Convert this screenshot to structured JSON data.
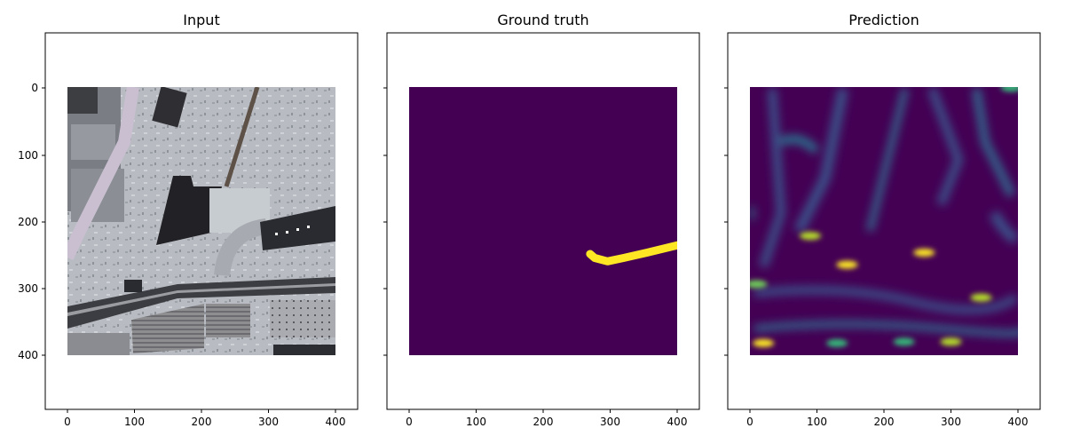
{
  "figure": {
    "panels": [
      {
        "title": "Input",
        "image_kind": "aerial photograph",
        "show_ytick_labels": true
      },
      {
        "title": "Ground truth",
        "image_kind": "binary segmentation mask",
        "show_ytick_labels": false
      },
      {
        "title": "Prediction",
        "image_kind": "predicted probability heatmap",
        "show_ytick_labels": false
      }
    ]
  },
  "chart_data": [
    {
      "type": "heatmap",
      "title": "Input",
      "xlim": [
        -33,
        433
      ],
      "ylim": [
        480,
        -80
      ],
      "image_extent": [
        0,
        400,
        0,
        400
      ],
      "xticks": [
        0,
        100,
        200,
        300,
        400
      ],
      "yticks": [
        0,
        100,
        200,
        300,
        400
      ],
      "xtick_labels": [
        "0",
        "100",
        "200",
        "300",
        "400"
      ],
      "ytick_labels": [
        "0",
        "100",
        "200",
        "300",
        "400"
      ]
    },
    {
      "type": "heatmap",
      "title": "Ground truth",
      "xlim": [
        -33,
        433
      ],
      "ylim": [
        480,
        -80
      ],
      "image_extent": [
        0,
        400,
        0,
        400
      ],
      "xticks": [
        0,
        100,
        200,
        300,
        400
      ],
      "yticks": [
        0,
        100,
        200,
        300,
        400
      ],
      "xtick_labels": [
        "0",
        "100",
        "200",
        "300",
        "400"
      ],
      "background_color": "#440154",
      "mask_color": "#fde725",
      "mask_path": [
        [
          270,
          249
        ],
        [
          277,
          255
        ],
        [
          296,
          260
        ],
        [
          320,
          255
        ],
        [
          355,
          247
        ],
        [
          400,
          236
        ]
      ]
    },
    {
      "type": "heatmap",
      "title": "Prediction",
      "xlim": [
        -33,
        433
      ],
      "ylim": [
        480,
        -80
      ],
      "image_extent": [
        0,
        400,
        0,
        400
      ],
      "xticks": [
        0,
        100,
        200,
        300,
        400
      ],
      "yticks": [
        0,
        100,
        200,
        300,
        400
      ],
      "xtick_labels": [
        "0",
        "100",
        "200",
        "300",
        "400"
      ],
      "colormap": "viridis",
      "hotspots": [
        {
          "x": 20,
          "y": 382,
          "v": 0.95
        },
        {
          "x": 90,
          "y": 222,
          "v": 0.9
        },
        {
          "x": 145,
          "y": 265,
          "v": 0.95
        },
        {
          "x": 260,
          "y": 247,
          "v": 0.95
        },
        {
          "x": 345,
          "y": 314,
          "v": 0.85
        },
        {
          "x": 300,
          "y": 380,
          "v": 0.8
        },
        {
          "x": 10,
          "y": 294,
          "v": 0.7
        },
        {
          "x": 130,
          "y": 382,
          "v": 0.6
        },
        {
          "x": 230,
          "y": 380,
          "v": 0.5
        },
        {
          "x": 390,
          "y": 1,
          "v": 0.55
        }
      ]
    }
  ]
}
